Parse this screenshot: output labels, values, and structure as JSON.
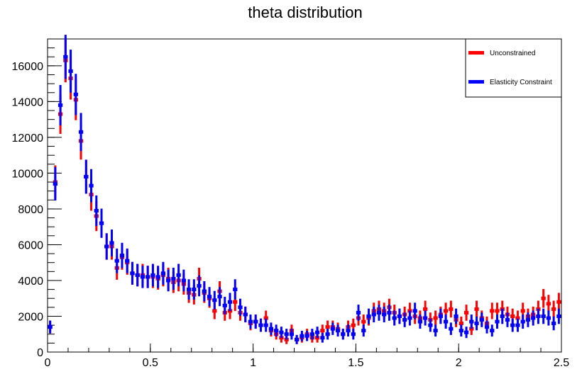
{
  "chart_data": {
    "type": "scatter",
    "title": "theta distribution",
    "xlabel": "",
    "ylabel": "",
    "xlim": [
      0,
      2.5
    ],
    "ylim": [
      0,
      17500
    ],
    "x_ticks": [
      0,
      0.5,
      1,
      1.5,
      2,
      2.5
    ],
    "x_tick_labels": [
      "0",
      "0.5",
      "1",
      "1.5",
      "2",
      "2.5"
    ],
    "y_ticks": [
      0,
      2000,
      4000,
      6000,
      8000,
      10000,
      12000,
      14000,
      16000
    ],
    "y_tick_labels": [
      "0",
      "2000",
      "4000",
      "6000",
      "8000",
      "10000",
      "12000",
      "14000",
      "16000"
    ],
    "grid": false,
    "legend_position": "top-right",
    "series": [
      {
        "name": "Unconstrained",
        "color": "#ff0000",
        "x": [
          0.0125,
          0.0375,
          0.0625,
          0.0875,
          0.1125,
          0.1375,
          0.1625,
          0.1875,
          0.2125,
          0.2375,
          0.2625,
          0.2875,
          0.3125,
          0.3375,
          0.3625,
          0.3875,
          0.4125,
          0.4375,
          0.4625,
          0.4875,
          0.5125,
          0.5375,
          0.5625,
          0.5875,
          0.6125,
          0.6375,
          0.6625,
          0.6875,
          0.7125,
          0.7375,
          0.7625,
          0.7875,
          0.8125,
          0.8375,
          0.8625,
          0.8875,
          0.9125,
          0.9375,
          0.9625,
          0.9875,
          1.0125,
          1.0375,
          1.0625,
          1.0875,
          1.1125,
          1.1375,
          1.1625,
          1.1875,
          1.2125,
          1.2375,
          1.2625,
          1.2875,
          1.3125,
          1.3375,
          1.3625,
          1.3875,
          1.4125,
          1.4375,
          1.4625,
          1.4875,
          1.5125,
          1.5375,
          1.5625,
          1.5875,
          1.6125,
          1.6375,
          1.6625,
          1.6875,
          1.7125,
          1.7375,
          1.7625,
          1.7875,
          1.8125,
          1.8375,
          1.8625,
          1.8875,
          1.9125,
          1.9375,
          1.9625,
          1.9875,
          2.0125,
          2.0375,
          2.0625,
          2.0875,
          2.1125,
          2.1375,
          2.1625,
          2.1875,
          2.2125,
          2.2375,
          2.2625,
          2.2875,
          2.3125,
          2.3375,
          2.3625,
          2.3875,
          2.4125,
          2.4375,
          2.4625,
          2.4875
        ],
        "y": [
          1400,
          9500,
          13300,
          16300,
          15300,
          14100,
          11800,
          9800,
          8800,
          7600,
          7200,
          5900,
          5900,
          4700,
          5300,
          5000,
          4400,
          4300,
          4300,
          4200,
          4200,
          4100,
          4300,
          4100,
          3900,
          4000,
          3800,
          3300,
          3200,
          4100,
          3300,
          3000,
          2300,
          3400,
          2200,
          2300,
          2800,
          2200,
          2100,
          1600,
          1700,
          1500,
          1900,
          1200,
          1000,
          800,
          700,
          1200,
          700,
          800,
          1000,
          800,
          800,
          1200,
          1400,
          1400,
          1300,
          1000,
          1400,
          1500,
          1900,
          1700,
          1900,
          2300,
          2400,
          2300,
          2500,
          2200,
          2000,
          2100,
          2300,
          2000,
          1900,
          2400,
          1800,
          1900,
          2100,
          2300,
          2400,
          1800,
          1600,
          2200,
          1300,
          2400,
          1900,
          1600,
          2300,
          2300,
          2400,
          2100,
          2000,
          1900,
          2300,
          2000,
          2100,
          2400,
          3000,
          2700,
          2400,
          2800
        ]
      },
      {
        "name": "Elasticity Constraint",
        "color": "#0000ff",
        "x": [
          0.0125,
          0.0375,
          0.0625,
          0.0875,
          0.1125,
          0.1375,
          0.1625,
          0.1875,
          0.2125,
          0.2375,
          0.2625,
          0.2875,
          0.3125,
          0.3375,
          0.3625,
          0.3875,
          0.4125,
          0.4375,
          0.4625,
          0.4875,
          0.5125,
          0.5375,
          0.5625,
          0.5875,
          0.6125,
          0.6375,
          0.6625,
          0.6875,
          0.7125,
          0.7375,
          0.7625,
          0.7875,
          0.8125,
          0.8375,
          0.8625,
          0.8875,
          0.9125,
          0.9375,
          0.9625,
          0.9875,
          1.0125,
          1.0375,
          1.0625,
          1.0875,
          1.1125,
          1.1375,
          1.1625,
          1.1875,
          1.2125,
          1.2375,
          1.2625,
          1.2875,
          1.3125,
          1.3375,
          1.3625,
          1.3875,
          1.4125,
          1.4375,
          1.4625,
          1.4875,
          1.5125,
          1.5375,
          1.5625,
          1.5875,
          1.6125,
          1.6375,
          1.6625,
          1.6875,
          1.7125,
          1.7375,
          1.7625,
          1.7875,
          1.8125,
          1.8375,
          1.8625,
          1.8875,
          1.9125,
          1.9375,
          1.9625,
          1.9875,
          2.0125,
          2.0375,
          2.0625,
          2.0875,
          2.1125,
          2.1375,
          2.1625,
          2.1875,
          2.2125,
          2.2375,
          2.2625,
          2.2875,
          2.3125,
          2.3375,
          2.3625,
          2.3875,
          2.4125,
          2.4375,
          2.4625,
          2.4875
        ],
        "y": [
          1400,
          9400,
          13800,
          16500,
          15700,
          14400,
          12300,
          9800,
          9300,
          7900,
          7200,
          5900,
          6100,
          5100,
          5400,
          5100,
          4400,
          4300,
          4200,
          4200,
          4300,
          4200,
          4400,
          4000,
          4100,
          4300,
          4000,
          3500,
          3500,
          3700,
          3400,
          3100,
          2900,
          3100,
          2600,
          2800,
          3500,
          2500,
          2100,
          1700,
          1700,
          1500,
          1500,
          1300,
          1200,
          1100,
          1000,
          1000,
          700,
          900,
          900,
          1000,
          1100,
          800,
          1000,
          1300,
          1200,
          1000,
          1200,
          1000,
          2200,
          1200,
          2000,
          2100,
          2200,
          2100,
          2200,
          1900,
          2000,
          1800,
          1900,
          2300,
          1700,
          1900,
          1500,
          1200,
          2000,
          1700,
          1300,
          2000,
          1200,
          1100,
          1700,
          1600,
          1800,
          1400,
          1200,
          1700,
          2000,
          1800,
          1500,
          1500,
          1700,
          1800,
          1900,
          2000,
          2000,
          1900,
          1600,
          2000
        ]
      }
    ]
  }
}
